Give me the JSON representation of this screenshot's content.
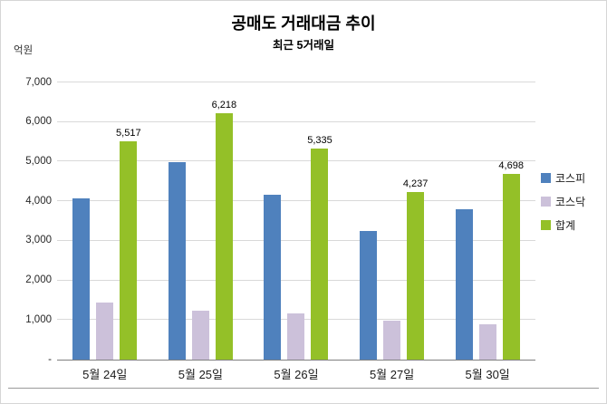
{
  "chart_data": {
    "type": "bar",
    "title": "공매도 거래대금 추이",
    "subtitle": "최근 5거래일",
    "ylabel": "억원",
    "xlabel": "",
    "categories": [
      "5월 24일",
      "5월 25일",
      "5월 26일",
      "5월 27일",
      "5월 30일"
    ],
    "series": [
      {
        "name": "코스피",
        "color": "#4F81BD",
        "values": [
          4080,
          4990,
          4160,
          3250,
          3800
        ]
      },
      {
        "name": "코스닥",
        "color": "#CCC1DA",
        "values": [
          1437,
          1228,
          1175,
          987,
          898
        ]
      },
      {
        "name": "합계",
        "color": "#94C028",
        "values": [
          5517,
          6218,
          5335,
          4237,
          4698
        ],
        "data_labels": [
          "5,517",
          "6,218",
          "5,335",
          "4,237",
          "4,698"
        ]
      }
    ],
    "ylim": [
      0,
      7000
    ],
    "ytick_step": 1000,
    "ytick_labels": [
      "-",
      "1,000",
      "2,000",
      "3,000",
      "4,000",
      "5,000",
      "6,000",
      "7,000"
    ],
    "grid": true,
    "legend_position": "right"
  }
}
